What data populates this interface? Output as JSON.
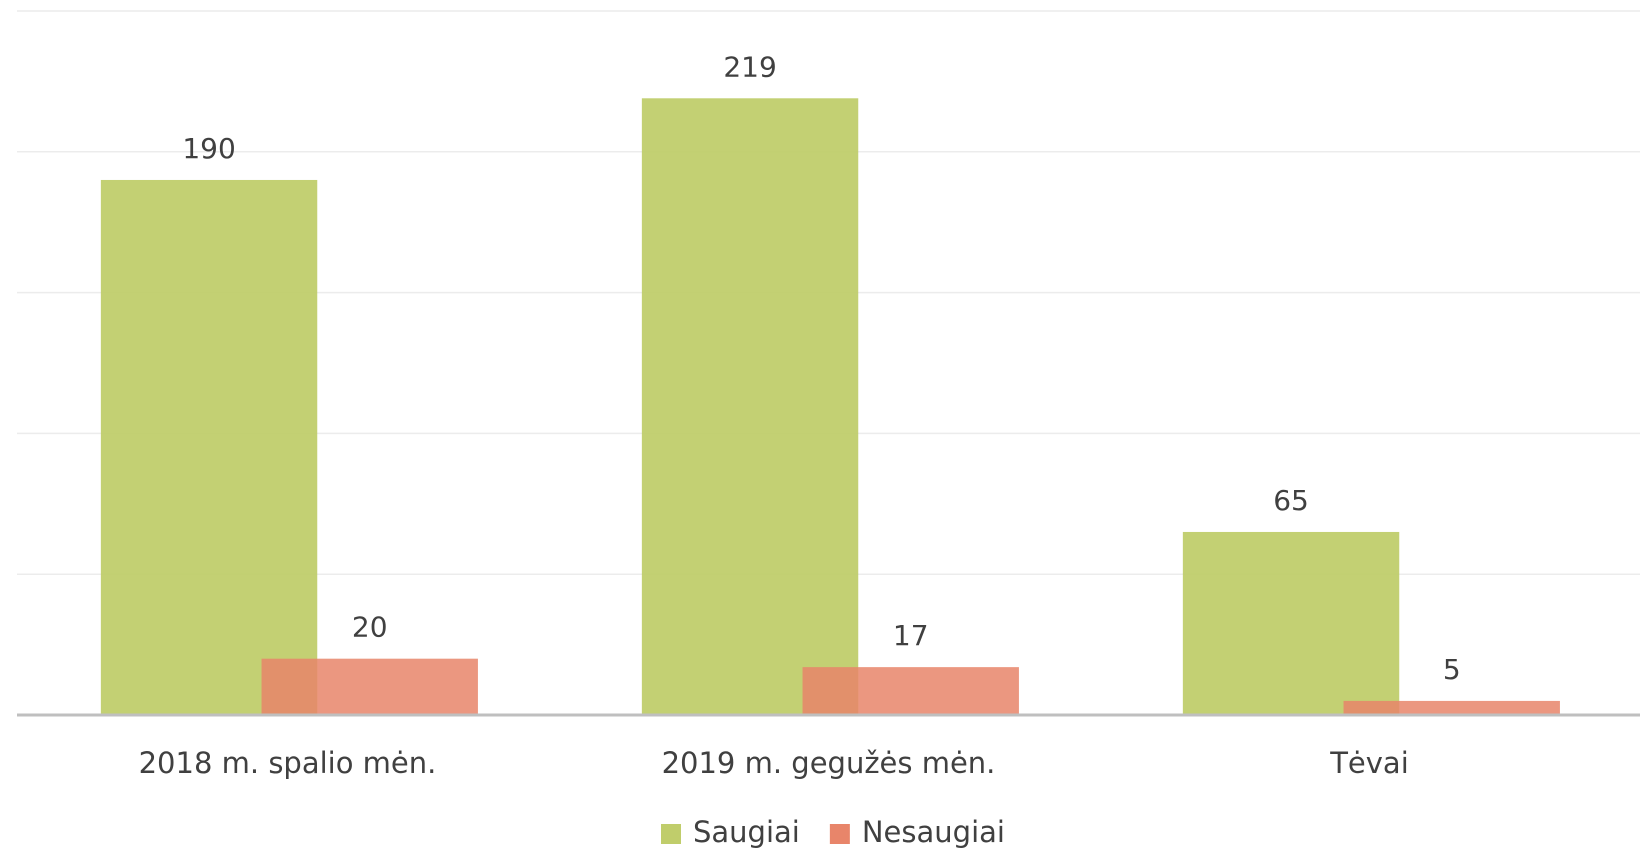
{
  "chart_data": {
    "type": "bar",
    "categories": [
      "2018 m. spalio mėn.",
      "2019 m. gegužės mėn.",
      "Tėvai"
    ],
    "series": [
      {
        "name": "Saugiai",
        "color": "#c0cd6b",
        "values": [
          190,
          219,
          65
        ]
      },
      {
        "name": "Nesaugiai",
        "color": "#e8856a",
        "values": [
          20,
          17,
          5
        ]
      }
    ],
    "ylim": [
      0,
      250
    ],
    "yticks": [
      0,
      50,
      100,
      150,
      200,
      250
    ],
    "grid": true,
    "legend": "bottom"
  }
}
